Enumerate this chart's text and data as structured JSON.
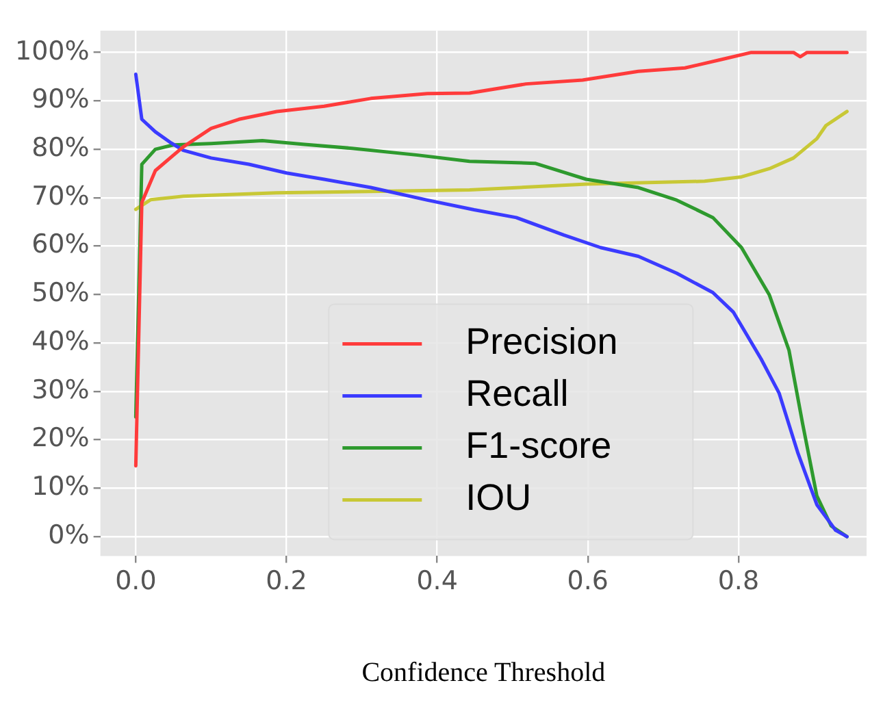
{
  "chart_data": {
    "type": "line",
    "xlabel": "Confidence Threshold",
    "xlim": [
      -0.047,
      0.97
    ],
    "xticks": [
      {
        "value": 0,
        "label": "0.0"
      },
      0.2,
      0.4,
      0.6,
      0.8
    ],
    "ylim": [
      -4,
      104.5
    ],
    "yticks": [
      {
        "value": 0,
        "label": "0%"
      },
      {
        "value": 10,
        "label": "10%"
      },
      {
        "value": 20,
        "label": "20%"
      },
      {
        "value": 30,
        "label": "30%"
      },
      {
        "value": 40,
        "label": "40%"
      },
      {
        "value": 50,
        "label": "50%"
      },
      {
        "value": 60,
        "label": "60%"
      },
      {
        "value": 70,
        "label": "70%"
      },
      {
        "value": 80,
        "label": "80%"
      },
      {
        "value": 90,
        "label": "90%"
      },
      {
        "value": 100,
        "label": "100%"
      }
    ],
    "grid": true,
    "legend": "bottom",
    "marker": "none",
    "line_style": "solid",
    "series": [
      {
        "name": "Precision",
        "color": "#ff3b3b",
        "x": [
          0,
          0.008,
          0.026,
          0.063,
          0.1,
          0.137,
          0.187,
          0.25,
          0.312,
          0.387,
          0.443,
          0.518,
          0.593,
          0.667,
          0.729,
          0.779,
          0.817,
          0.873,
          0.882,
          0.891,
          0.944
        ],
        "values": [
          14.6,
          69,
          75.6,
          80.5,
          84.3,
          86.2,
          87.8,
          88.9,
          90.5,
          91.5,
          91.6,
          93.5,
          94.3,
          96.1,
          96.8,
          98.6,
          100,
          100,
          99.1,
          100,
          100
        ]
      },
      {
        "name": "Recall",
        "color": "#3b3bff",
        "x": [
          0,
          0.008,
          0.026,
          0.047,
          0.063,
          0.1,
          0.15,
          0.2,
          0.25,
          0.312,
          0.387,
          0.449,
          0.505,
          0.568,
          0.617,
          0.667,
          0.718,
          0.766,
          0.793,
          0.83,
          0.854,
          0.879,
          0.904,
          0.929,
          0.944
        ],
        "values": [
          95.5,
          86.2,
          83.6,
          81.3,
          79.8,
          78.2,
          76.9,
          75.1,
          73.8,
          72.1,
          69.5,
          67.5,
          65.9,
          62.3,
          59.7,
          57.9,
          54.4,
          50.4,
          46.4,
          36.7,
          29.6,
          17.2,
          6.6,
          1.3,
          0
        ]
      },
      {
        "name": "F1-score",
        "color": "#2e9a2e",
        "x": [
          0,
          0.008,
          0.026,
          0.05,
          0.1,
          0.168,
          0.224,
          0.287,
          0.374,
          0.443,
          0.53,
          0.598,
          0.667,
          0.718,
          0.766,
          0.804,
          0.841,
          0.867,
          0.885,
          0.904,
          0.923,
          0.944
        ],
        "values": [
          24.7,
          76.9,
          80,
          80.9,
          81.2,
          81.8,
          81,
          80.2,
          78.8,
          77.5,
          77.1,
          73.8,
          72.1,
          69.5,
          65.9,
          59.7,
          49.9,
          38.5,
          23.4,
          8.4,
          2.2,
          0
        ]
      },
      {
        "name": "IOU",
        "color": "#c8c836",
        "x": [
          0,
          0.02,
          0.063,
          0.187,
          0.443,
          0.598,
          0.755,
          0.804,
          0.841,
          0.873,
          0.904,
          0.916,
          0.944
        ],
        "values": [
          67.6,
          69.6,
          70.3,
          71,
          71.6,
          72.8,
          73.4,
          74.3,
          76,
          78.2,
          82.2,
          84.9,
          87.8
        ]
      }
    ]
  }
}
